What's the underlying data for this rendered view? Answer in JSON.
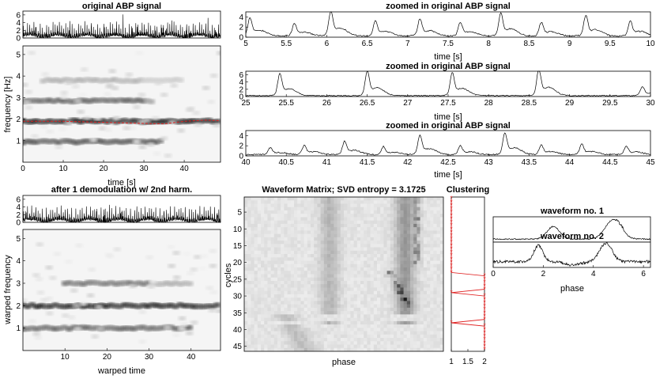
{
  "figure": {
    "panels": {
      "abp_top": {
        "title": "original ABP signal",
        "yticks": [
          "0",
          "2",
          "4",
          "6"
        ]
      },
      "tf_orig": {
        "ylabel": "frequency [Hz]",
        "xlabel": "time [s]",
        "xticks": [
          "0",
          "10",
          "20",
          "30",
          "40"
        ],
        "yticks": [
          "1",
          "2",
          "3",
          "4",
          "5"
        ]
      },
      "zoom1": {
        "title": "zoomed in original ABP signal",
        "xlabel": "time [s]",
        "xticks": [
          "5",
          "5.5",
          "6",
          "6.5",
          "7",
          "7.5",
          "8",
          "8.5",
          "9",
          "9.5",
          "10"
        ],
        "yticks": [
          "0",
          "2",
          "4"
        ]
      },
      "zoom2": {
        "title": "zoomed in original ABP signal",
        "xlabel": "time [s]",
        "xticks": [
          "25",
          "25.5",
          "26",
          "26.5",
          "27",
          "27.5",
          "28",
          "28.5",
          "29",
          "29.5",
          "30"
        ],
        "yticks": [
          "0",
          "2",
          "4",
          "6"
        ]
      },
      "zoom3": {
        "title": "zoomed in original ABP signal",
        "xlabel": "time [s]",
        "xticks": [
          "40",
          "40.5",
          "41",
          "41.5",
          "42",
          "42.5",
          "43",
          "43.5",
          "44",
          "44.5",
          "45"
        ],
        "yticks": [
          "0",
          "2",
          "4"
        ]
      },
      "abp_demod": {
        "title": "after 1 demodulation w/ 2nd harm.",
        "yticks": [
          "0",
          "2",
          "4",
          "6"
        ]
      },
      "tf_warp": {
        "ylabel": "warped frequency",
        "xlabel": "warped time",
        "xticks": [
          "10",
          "20",
          "30",
          "40"
        ],
        "yticks": [
          "1",
          "2",
          "3",
          "4",
          "5"
        ]
      },
      "wmatrix": {
        "title": "Waveform Matrix; SVD entropy = 3.1725",
        "ylabel": "cycles",
        "xlabel": "phase",
        "yticks": [
          "5",
          "10",
          "15",
          "20",
          "25",
          "30",
          "35",
          "40",
          "45"
        ]
      },
      "clustering": {
        "title": "Clustering",
        "xticks": [
          "1",
          "1.5",
          "2"
        ]
      },
      "wf1": {
        "title": "waveform no. 1"
      },
      "wf2": {
        "title": "waveform no. 2",
        "xlabel": "phase",
        "xticks": [
          "0",
          "2",
          "4",
          "6"
        ]
      }
    }
  },
  "chart_data": [
    {
      "type": "line",
      "id": "abp_top",
      "title": "original ABP signal",
      "xlim": [
        0,
        49
      ],
      "ylim": [
        0,
        7
      ],
      "description_series": "ABP waveform, ~1.9 Hz cardiac pulses, peaks up to ~6"
    },
    {
      "type": "heatmap",
      "id": "tf_orig",
      "xlabel": "time [s]",
      "ylabel": "frequency [Hz]",
      "xlim": [
        0,
        49
      ],
      "ylim": [
        0,
        5.4
      ],
      "bands": [
        {
          "freq": 0.95,
          "t": [
            0,
            35
          ],
          "strength": 0.75
        },
        {
          "freq": 1.9,
          "t": [
            0,
            49
          ],
          "strength": 1.0
        },
        {
          "freq": 2.85,
          "t": [
            0,
            32
          ],
          "strength": 0.7
        },
        {
          "freq": 3.8,
          "t": [
            5,
            40
          ],
          "strength": 0.3
        }
      ],
      "ridge": {
        "color": "#e02020",
        "t": [
          0,
          10,
          20,
          30,
          35,
          40,
          45,
          49
        ],
        "f": [
          1.9,
          1.9,
          1.85,
          1.8,
          1.78,
          1.9,
          1.95,
          1.93
        ]
      }
    },
    {
      "type": "line",
      "id": "zoom1",
      "title": "zoomed in original ABP signal",
      "xlabel": "time [s]",
      "xlim": [
        5,
        10
      ],
      "ylim": [
        0,
        5
      ],
      "peaks_t": [
        5.05,
        5.6,
        6.05,
        6.6,
        7.15,
        7.65,
        8.15,
        8.65,
        9.2,
        9.75
      ],
      "peaks_v": [
        3.2,
        2.2,
        4.4,
        2.6,
        3.0,
        2.4,
        4.0,
        2.4,
        3.6,
        2.6
      ]
    },
    {
      "type": "line",
      "id": "zoom2",
      "title": "zoomed in original ABP signal",
      "xlabel": "time [s]",
      "xlim": [
        25,
        30
      ],
      "ylim": [
        0,
        7
      ],
      "peaks_t": [
        25.42,
        26.5,
        27.55,
        28.62,
        29.9
      ],
      "peaks_v": [
        5.4,
        6.2,
        5.7,
        6.6,
        2.2
      ]
    },
    {
      "type": "line",
      "id": "zoom3",
      "title": "zoomed in original ABP signal",
      "xlabel": "time [s]",
      "xlim": [
        40,
        45
      ],
      "ylim": [
        0,
        5
      ],
      "peaks_t": [
        40.3,
        40.72,
        41.22,
        41.7,
        42.15,
        42.65,
        43.2,
        43.65,
        44.15,
        44.7
      ],
      "peaks_v": [
        1.2,
        1.6,
        2.4,
        1.4,
        3.4,
        1.6,
        3.9,
        1.7,
        1.8,
        1.5
      ]
    },
    {
      "type": "line",
      "id": "abp_demod",
      "title": "after 1 demodulation w/ 2nd harm.",
      "xlim": [
        0,
        47
      ],
      "ylim": [
        0,
        7
      ]
    },
    {
      "type": "heatmap",
      "id": "tf_warp",
      "xlabel": "warped time",
      "ylabel": "warped frequency",
      "xlim": [
        0,
        47
      ],
      "ylim": [
        0,
        5.4
      ],
      "bands": [
        {
          "freq": 1.0,
          "t": [
            0,
            40
          ],
          "strength": 0.7
        },
        {
          "freq": 2.0,
          "t": [
            0,
            47
          ],
          "strength": 1.0
        },
        {
          "freq": 3.0,
          "t": [
            10,
            40
          ],
          "strength": 0.6
        }
      ]
    },
    {
      "type": "heatmap",
      "id": "wmatrix",
      "title": "Waveform Matrix; SVD entropy = 3.1725",
      "xlabel": "phase",
      "ylabel": "cycles",
      "ylim": [
        1,
        46
      ]
    },
    {
      "type": "scatter",
      "id": "clustering",
      "title": "Clustering",
      "xlim": [
        1,
        2
      ],
      "ylim": [
        1,
        46
      ],
      "cycles": [
        1,
        2,
        3,
        4,
        5,
        6,
        7,
        8,
        9,
        10,
        11,
        12,
        13,
        14,
        15,
        16,
        17,
        18,
        19,
        20,
        21,
        22,
        23,
        24,
        25,
        26,
        27,
        28,
        29,
        30,
        31,
        32,
        33,
        34,
        35,
        36,
        37,
        38,
        39,
        40,
        41,
        42,
        43,
        44,
        45,
        46
      ],
      "labels": [
        1,
        1,
        1,
        1,
        1,
        1,
        1,
        1,
        1,
        1,
        1,
        1,
        1,
        1,
        1,
        1,
        1,
        1,
        1,
        1,
        1,
        1,
        1,
        2,
        2,
        2,
        2,
        2,
        1,
        2,
        2,
        2,
        2,
        2,
        2,
        2,
        2,
        1,
        2,
        2,
        2,
        2,
        2,
        2,
        2,
        2
      ],
      "color": "#e02020"
    },
    {
      "type": "line",
      "id": "wf1",
      "title": "waveform no. 1",
      "xlim": [
        0,
        6.28
      ]
    },
    {
      "type": "line",
      "id": "wf2",
      "title": "waveform no. 2",
      "xlabel": "phase",
      "xlim": [
        0,
        6.28
      ]
    }
  ]
}
